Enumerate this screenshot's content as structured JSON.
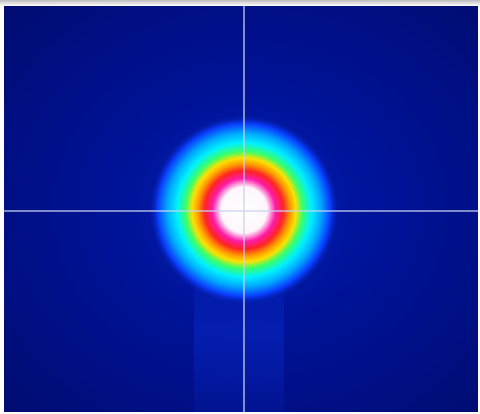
{
  "image": {
    "subject": "laser-beam-profile",
    "colormap": {
      "background": "#00108a",
      "outer_glow": "#0a3dff",
      "cyan_ring": "#00f0ff",
      "green_ring": "#38ff6a",
      "yellow_ring": "#ffe000",
      "red_ring": "#ff2424",
      "magenta_ring": "#ff1aa8",
      "core": "#ffffff"
    },
    "crosshair": {
      "color": "#c8d4f0",
      "visible": true
    }
  }
}
